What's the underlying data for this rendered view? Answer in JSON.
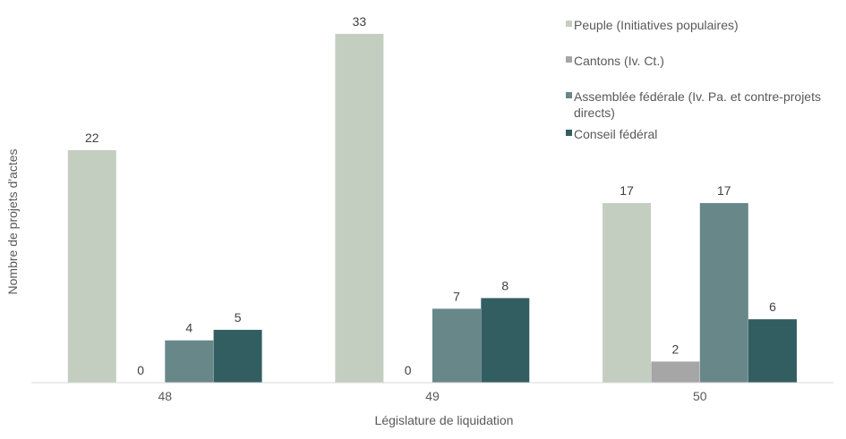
{
  "chart_data": {
    "type": "bar",
    "title": "",
    "xlabel": "Législature de liquidation",
    "ylabel": "Nombre de projets d'actes",
    "categories": [
      "48",
      "49",
      "50"
    ],
    "ylim": [
      0,
      35
    ],
    "grid": false,
    "legend_position": "top-right",
    "series": [
      {
        "name": "Peuple (Initiatives populaires)",
        "color": "#c3cec1",
        "values": [
          22,
          33,
          17
        ]
      },
      {
        "name": "Cantons (Iv. Ct.)",
        "color": "#a6a6a6",
        "values": [
          0,
          0,
          2
        ]
      },
      {
        "name": "Assemblée fédérale (Iv. Pa. et contre-projets directs)",
        "legend_lines": [
          "Assemblée fédérale (Iv. Pa. et contre-projets",
          "directs)"
        ],
        "color": "#688789",
        "values": [
          4,
          7,
          17
        ]
      },
      {
        "name": "Conseil fédéral",
        "color": "#325e62",
        "values": [
          5,
          8,
          6
        ]
      }
    ]
  }
}
